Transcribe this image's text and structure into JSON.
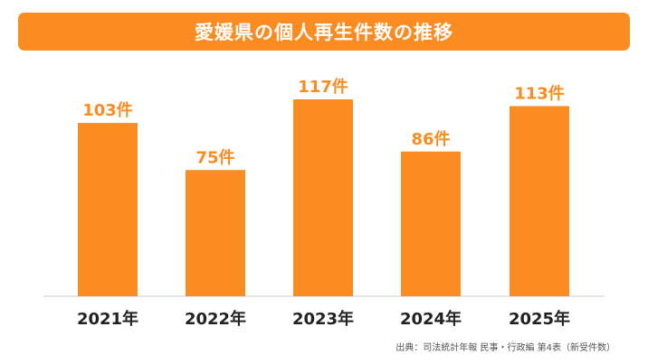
{
  "header": {
    "title": "愛媛県の個人再生件数の推移"
  },
  "chart_data": {
    "type": "bar",
    "title": "愛媛県の個人再生件数の推移",
    "xlabel": "",
    "ylabel": "",
    "categories": [
      "2021年",
      "2022年",
      "2023年",
      "2024年",
      "2025年"
    ],
    "values": [
      103,
      75,
      117,
      86,
      113
    ],
    "data_labels": [
      "103件",
      "75件",
      "117件",
      "86件",
      "113件"
    ],
    "ylim": [
      0,
      117
    ],
    "grid": false,
    "legend": "none"
  },
  "footer": {
    "source": "出典：司法統計年報 民事・行政編 第4表（新受件数）"
  },
  "colors": {
    "accent": "#FA8C21",
    "axis": "#cccccc",
    "tick_text": "#222222"
  }
}
